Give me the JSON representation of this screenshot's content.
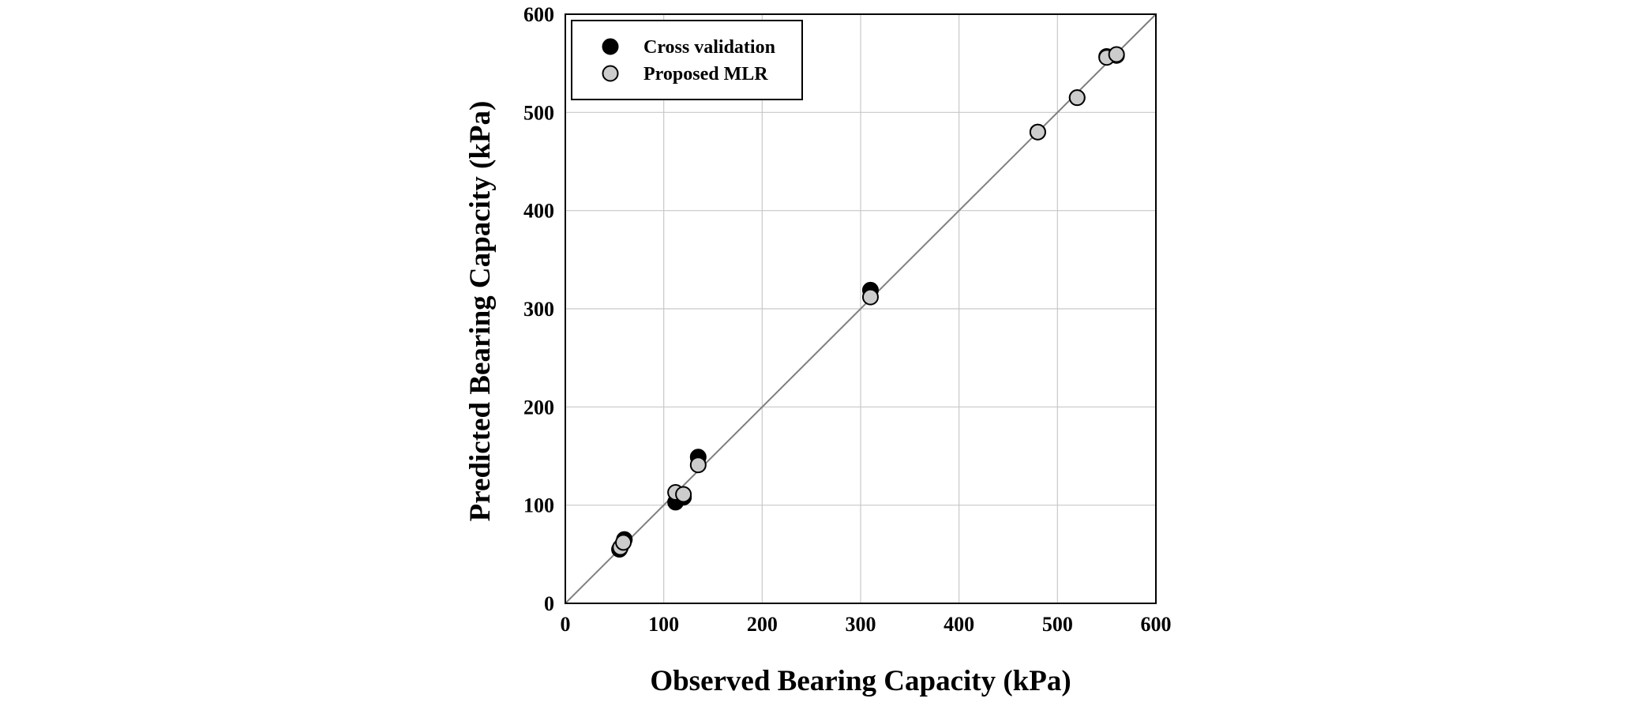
{
  "chart_data": {
    "type": "scatter",
    "xlabel": "Observed Bearing Capacity (kPa)",
    "ylabel": "Predicted Bearing Capacity (kPa)",
    "xlim": [
      0,
      600
    ],
    "ylim": [
      0,
      600
    ],
    "xticks": [
      "0",
      "100",
      "200",
      "300",
      "400",
      "500",
      "600"
    ],
    "yticks": [
      "0",
      "100",
      "200",
      "300",
      "400",
      "500",
      "600"
    ],
    "grid": true,
    "legend_position": "top-left",
    "reference_line": "y = x",
    "series": [
      {
        "name": "Cross validation",
        "marker_color": "#000000",
        "points": [
          [
            55,
            55
          ],
          [
            60,
            65
          ],
          [
            112,
            103
          ],
          [
            120,
            108
          ],
          [
            135,
            149
          ],
          [
            310,
            319
          ],
          [
            480,
            480
          ],
          [
            520,
            515
          ],
          [
            550,
            557
          ],
          [
            560,
            558
          ]
        ]
      },
      {
        "name": "Proposed MLR",
        "marker_color": "#cccccc",
        "points": [
          [
            56,
            57
          ],
          [
            59,
            62
          ],
          [
            112,
            113
          ],
          [
            120,
            111
          ],
          [
            135,
            141
          ],
          [
            310,
            312
          ],
          [
            480,
            480
          ],
          [
            520,
            515
          ],
          [
            550,
            556
          ],
          [
            560,
            559
          ]
        ]
      }
    ]
  }
}
